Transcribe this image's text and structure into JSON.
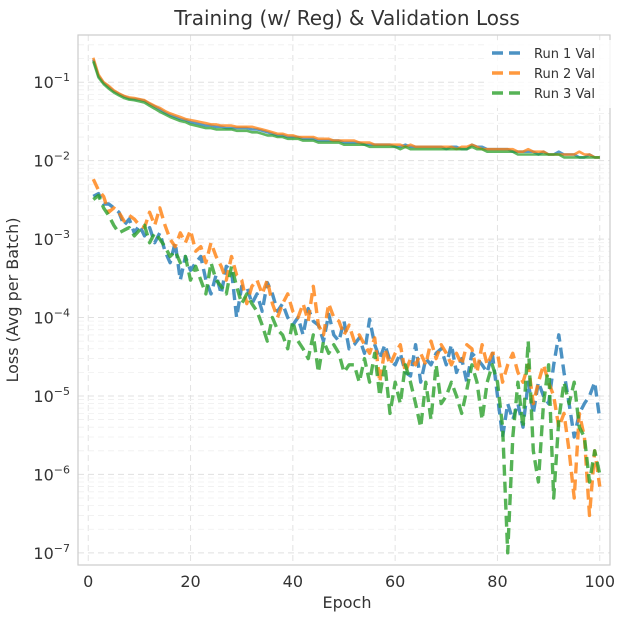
{
  "chart_data": {
    "type": "line",
    "title": "Training (w/ Reg) & Validation Loss",
    "xlabel": "Epoch",
    "ylabel": "Loss (Avg per Batch)",
    "xlim": [
      -2,
      102
    ],
    "ylim": [
      7e-08,
      0.4
    ],
    "yscale": "log",
    "grid": true,
    "legend_position": "top-right",
    "x_ticks": [
      0,
      20,
      40,
      60,
      80,
      100
    ],
    "x_tick_labels": [
      "0",
      "20",
      "40",
      "60",
      "80",
      "100"
    ],
    "y_ticks": [
      1e-07,
      1e-06,
      1e-05,
      0.0001,
      0.001,
      0.01,
      0.1
    ],
    "y_tick_labels": [
      "10−7",
      "10−6",
      "10−5",
      "10−4",
      "10−3",
      "10−2",
      "10−1"
    ],
    "legend_labels": [
      "Run 1 Val",
      "Run 2 Val",
      "Run 3 Val"
    ],
    "colors": [
      "#1f77b4",
      "#ff7f0e",
      "#2ca02c"
    ],
    "train_series": [
      {
        "values": [
          0.195,
          0.12,
          0.098,
          0.087,
          0.077,
          0.071,
          0.066,
          0.062,
          0.061,
          0.06,
          0.058,
          0.053,
          0.049,
          0.045,
          0.041,
          0.038,
          0.036,
          0.034,
          0.033,
          0.031,
          0.03,
          0.029,
          0.028,
          0.028,
          0.027,
          0.027,
          0.026,
          0.026,
          0.026,
          0.026,
          0.026,
          0.025,
          0.025,
          0.024,
          0.023,
          0.022,
          0.021,
          0.021,
          0.02,
          0.02,
          0.02,
          0.019,
          0.019,
          0.019,
          0.018,
          0.018,
          0.018,
          0.018,
          0.018,
          0.017,
          0.017,
          0.017,
          0.017,
          0.016,
          0.016,
          0.016,
          0.016,
          0.016,
          0.016,
          0.015,
          0.015,
          0.016,
          0.015,
          0.015,
          0.015,
          0.015,
          0.015,
          0.015,
          0.015,
          0.014,
          0.015,
          0.015,
          0.014,
          0.014,
          0.016,
          0.015,
          0.015,
          0.014,
          0.014,
          0.014,
          0.014,
          0.014,
          0.013,
          0.013,
          0.013,
          0.013,
          0.013,
          0.012,
          0.013,
          0.012,
          0.012,
          0.013,
          0.012,
          0.012,
          0.012,
          0.011,
          0.011,
          0.012,
          0.011,
          0.011
        ]
      },
      {
        "values": [
          0.205,
          0.125,
          0.1,
          0.09,
          0.079,
          0.072,
          0.067,
          0.064,
          0.063,
          0.061,
          0.059,
          0.054,
          0.05,
          0.047,
          0.043,
          0.04,
          0.038,
          0.036,
          0.034,
          0.033,
          0.032,
          0.031,
          0.03,
          0.029,
          0.029,
          0.028,
          0.028,
          0.028,
          0.027,
          0.027,
          0.027,
          0.027,
          0.026,
          0.025,
          0.024,
          0.023,
          0.022,
          0.022,
          0.021,
          0.021,
          0.02,
          0.02,
          0.02,
          0.02,
          0.019,
          0.019,
          0.019,
          0.018,
          0.018,
          0.018,
          0.018,
          0.018,
          0.017,
          0.017,
          0.017,
          0.016,
          0.016,
          0.016,
          0.016,
          0.016,
          0.016,
          0.015,
          0.016,
          0.015,
          0.015,
          0.015,
          0.015,
          0.015,
          0.015,
          0.015,
          0.015,
          0.014,
          0.015,
          0.015,
          0.016,
          0.015,
          0.014,
          0.014,
          0.014,
          0.014,
          0.014,
          0.014,
          0.014,
          0.013,
          0.013,
          0.014,
          0.013,
          0.013,
          0.013,
          0.012,
          0.012,
          0.012,
          0.012,
          0.012,
          0.012,
          0.013,
          0.012,
          0.012,
          0.011,
          0.011
        ]
      },
      {
        "values": [
          0.185,
          0.115,
          0.095,
          0.083,
          0.074,
          0.068,
          0.063,
          0.06,
          0.059,
          0.057,
          0.055,
          0.05,
          0.046,
          0.042,
          0.039,
          0.036,
          0.034,
          0.032,
          0.031,
          0.029,
          0.028,
          0.027,
          0.026,
          0.026,
          0.025,
          0.025,
          0.025,
          0.025,
          0.024,
          0.024,
          0.024,
          0.023,
          0.023,
          0.022,
          0.021,
          0.021,
          0.02,
          0.02,
          0.019,
          0.019,
          0.019,
          0.018,
          0.018,
          0.018,
          0.017,
          0.017,
          0.017,
          0.017,
          0.017,
          0.016,
          0.016,
          0.016,
          0.016,
          0.016,
          0.015,
          0.015,
          0.015,
          0.015,
          0.015,
          0.015,
          0.014,
          0.015,
          0.014,
          0.014,
          0.014,
          0.014,
          0.014,
          0.014,
          0.014,
          0.014,
          0.014,
          0.014,
          0.014,
          0.014,
          0.015,
          0.014,
          0.014,
          0.013,
          0.013,
          0.013,
          0.013,
          0.013,
          0.013,
          0.012,
          0.012,
          0.012,
          0.012,
          0.012,
          0.012,
          0.012,
          0.012,
          0.012,
          0.011,
          0.011,
          0.011,
          0.011,
          0.011,
          0.011,
          0.011,
          0.011
        ]
      }
    ],
    "val_series": [
      {
        "name": "Run 1 Val",
        "values": [
          0.0035,
          0.0038,
          0.0028,
          0.0028,
          0.0025,
          0.0022,
          0.0015,
          0.0018,
          0.0012,
          0.0015,
          0.0011,
          0.0014,
          0.0009,
          0.0012,
          0.0007,
          0.0005,
          0.0009,
          0.0003,
          0.0006,
          0.0004,
          0.0005,
          0.0006,
          0.0003,
          0.0002,
          0.00035,
          0.0002,
          0.00045,
          0.0004,
          0.0001,
          0.00025,
          0.00025,
          0.00015,
          0.0002,
          0.00012,
          0.00028,
          0.0002,
          0.00012,
          0.00015,
          0.0001,
          8e-05,
          0.0001,
          6e-05,
          0.00013,
          9e-05,
          8e-05,
          5e-05,
          0.00011,
          6e-05,
          5e-05,
          9e-05,
          4e-05,
          4.5e-05,
          5.5e-05,
          3.5e-05,
          9.5e-05,
          4.5e-05,
          3e-05,
          4.5e-05,
          2.8e-05,
          2.5e-05,
          3.5e-05,
          2e-05,
          1.8e-05,
          4.5e-05,
          1.5e-05,
          3e-05,
          2.5e-05,
          3.5e-05,
          4e-05,
          2.5e-05,
          4.5e-05,
          2e-05,
          3e-05,
          1.5e-05,
          3.5e-05,
          3e-05,
          2.5e-05,
          2e-05,
          3.5e-05,
          1e-05,
          3e-06,
          8e-06,
          5e-06,
          8e-06,
          4e-06,
          1.5e-05,
          6e-06,
          1.5e-05,
          1e-05,
          8e-06,
          2.5e-05,
          6e-05,
          2e-05,
          8e-06,
          3e-06,
          6e-06,
          8e-06,
          1e-05,
          1.5e-05,
          5e-06
        ]
      },
      {
        "name": "Run 2 Val",
        "values": [
          0.0058,
          0.0042,
          0.0035,
          0.0022,
          0.0025,
          0.0022,
          0.0017,
          0.002,
          0.0018,
          0.0015,
          0.0014,
          0.0022,
          0.0015,
          0.0025,
          0.0015,
          0.001,
          0.0008,
          0.0012,
          0.0009,
          0.0013,
          0.0007,
          0.0008,
          0.0005,
          0.0009,
          0.0006,
          0.00045,
          0.0003,
          0.0006,
          0.00035,
          0.0003,
          0.00015,
          0.00025,
          0.0003,
          0.0002,
          0.0003,
          0.00015,
          0.0001,
          0.00015,
          0.0002,
          0.00012,
          0.0001,
          0.00015,
          9e-05,
          0.00025,
          8e-05,
          6e-05,
          0.00015,
          0.0001,
          9e-05,
          6e-05,
          8e-05,
          5e-05,
          6e-05,
          4.5e-05,
          3.5e-05,
          5.5e-05,
          1.5e-05,
          4e-05,
          2.5e-05,
          3.5e-05,
          4.5e-05,
          2e-05,
          3e-05,
          2.5e-05,
          3.5e-05,
          2.5e-05,
          5e-05,
          3e-05,
          4.5e-05,
          3.5e-05,
          2.5e-05,
          3.5e-05,
          2.5e-05,
          4.5e-05,
          4e-05,
          2e-05,
          4.5e-05,
          2.5e-05,
          3.5e-05,
          3.5e-05,
          1.5e-05,
          2.5e-05,
          3.5e-05,
          2e-05,
          1.5e-05,
          2.5e-05,
          8e-06,
          1.5e-05,
          2.5e-05,
          1.5e-05,
          1e-05,
          4e-06,
          6e-06,
          2e-06,
          5e-07,
          6e-06,
          3e-06,
          3e-07,
          2e-06,
          7e-07
        ]
      },
      {
        "name": "Run 3 Val",
        "values": [
          0.0032,
          0.0036,
          0.0025,
          0.002,
          0.0015,
          0.0012,
          0.0013,
          0.0014,
          0.0011,
          0.0013,
          0.0015,
          0.0009,
          0.0012,
          0.001,
          0.0008,
          0.0006,
          0.0007,
          0.0005,
          0.0006,
          0.0003,
          0.00045,
          0.0003,
          0.0002,
          0.0005,
          0.0003,
          0.00025,
          0.0002,
          0.00045,
          0.00025,
          0.00015,
          0.0002,
          0.00015,
          0.00012,
          8e-05,
          5e-05,
          0.0001,
          7e-05,
          6e-05,
          4e-05,
          9e-05,
          5e-05,
          4e-05,
          3e-05,
          6e-05,
          2e-05,
          5e-05,
          3.5e-05,
          4.5e-05,
          3.5e-05,
          2e-05,
          2.5e-05,
          2.5e-05,
          1.5e-05,
          3e-05,
          1.5e-05,
          3.5e-05,
          1e-05,
          2.5e-05,
          6e-06,
          1.5e-05,
          8e-06,
          2.5e-05,
          1.5e-05,
          8e-06,
          4e-06,
          1.5e-05,
          5e-06,
          2.5e-05,
          8e-06,
          1e-05,
          1.5e-05,
          1e-05,
          6e-06,
          1.2e-05,
          2.5e-05,
          1.5e-05,
          5e-06,
          1.5e-05,
          2.5e-05,
          1.5e-05,
          4e-06,
          1e-07,
          3e-06,
          1.5e-05,
          4e-06,
          5e-05,
          2e-06,
          8e-07,
          8e-06,
          2.5e-05,
          5e-07,
          5e-06,
          1.5e-05,
          8e-06,
          1.5e-05,
          4e-06,
          3e-06,
          8e-07,
          2e-06,
          1e-06
        ]
      }
    ]
  }
}
